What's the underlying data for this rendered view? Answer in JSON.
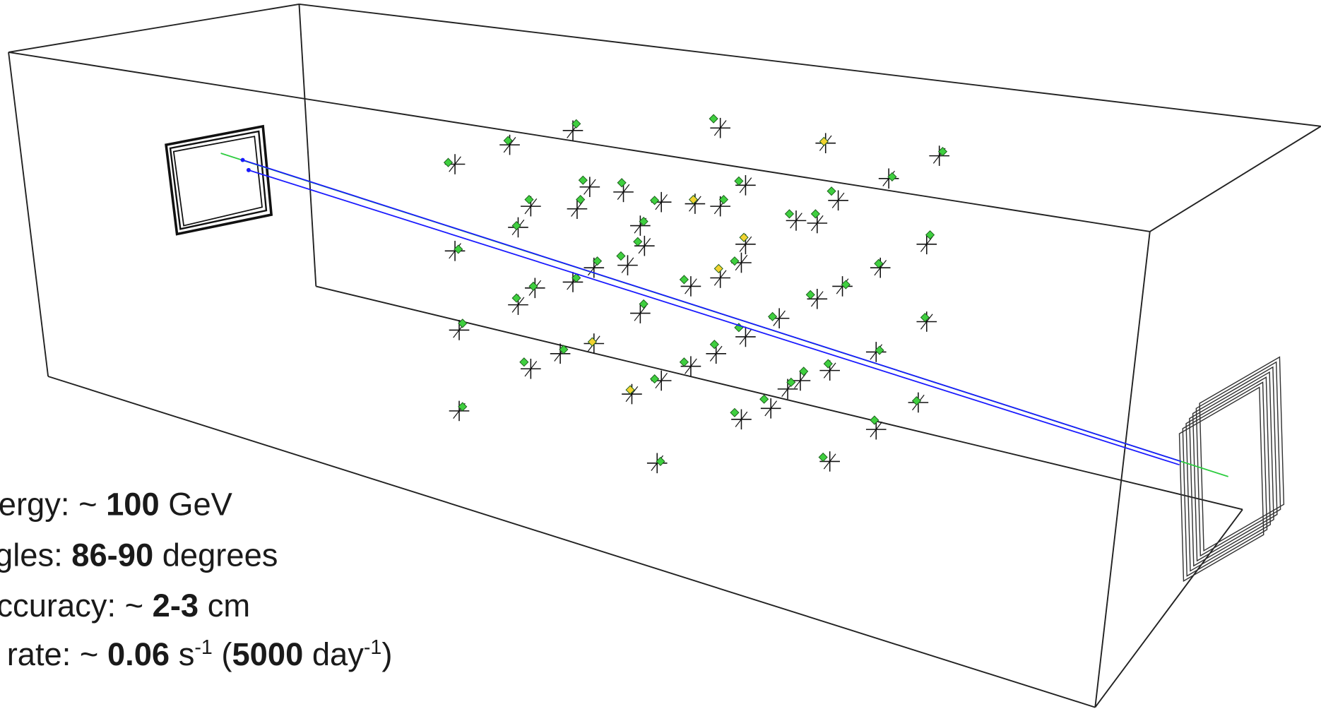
{
  "info_lines": [
    [
      {
        "text": "ergy: ~ "
      },
      {
        "text": "100",
        "bold": true
      },
      {
        "text": " GeV"
      }
    ],
    [
      {
        "text": "gles: "
      },
      {
        "text": "86-90",
        "bold": true
      },
      {
        "text": " degrees"
      }
    ],
    [
      {
        "text": "ccuracy: ~ "
      },
      {
        "text": "2-3",
        "bold": true
      },
      {
        "text": " cm"
      }
    ],
    [
      {
        "text": "rate: ~ "
      },
      {
        "text": "0.06",
        "bold": true
      },
      {
        "text": " s"
      },
      {
        "text": "-1",
        "sup": true
      },
      {
        "text": " ("
      },
      {
        "text": "5000",
        "bold": true
      },
      {
        "text": " day"
      },
      {
        "text": "-1",
        "sup": true
      },
      {
        "text": ")"
      }
    ]
  ]
}
